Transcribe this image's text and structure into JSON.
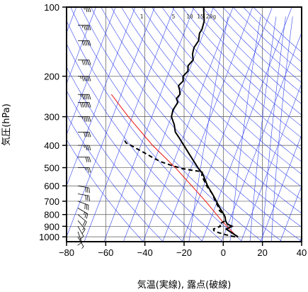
{
  "chart_data": {
    "type": "line",
    "chart_kind": "skew-T log-P thermodynamic diagram",
    "title": "",
    "xlabel": "気温(実線), 露点(破線)",
    "ylabel": "気圧(hPa)",
    "x_tick_labels": [
      "−80",
      "−60",
      "−40",
      "−20",
      "0",
      "20",
      "40"
    ],
    "x_ticks": [
      -80,
      -60,
      -40,
      -20,
      0,
      20,
      40
    ],
    "y_tick_labels": [
      "100",
      "200",
      "300",
      "400",
      "500",
      "600",
      "700",
      "800",
      "900",
      "1000"
    ],
    "y_ticks": [
      100,
      200,
      300,
      400,
      500,
      600,
      700,
      800,
      900,
      1000
    ],
    "y_scale": "log (pressure, inverted)",
    "xlim": [
      -80,
      40
    ],
    "ylim": [
      1050,
      100
    ],
    "grid": true,
    "mixing_ratio_labels": [
      "1",
      "5",
      "10",
      "15",
      "20g"
    ],
    "mixing_ratio_values": [
      1,
      5,
      10,
      15,
      20
    ],
    "colors": {
      "frame": "#000000",
      "grid": "#555555",
      "isotherm_and_adiabat_lines": "#3344ee",
      "reference_line": "#ee1111",
      "temperature": "#000000",
      "dewpoint": "#000000",
      "wind_barbs": "#000000"
    },
    "series": [
      {
        "style": "solid",
        "points": [
          {
            "p": 1000,
            "t": 7.5
          },
          {
            "p": 960,
            "t": 3.5
          },
          {
            "p": 925,
            "t": 0.0
          },
          {
            "p": 900,
            "t": 2.5
          },
          {
            "p": 880,
            "t": -0.5
          },
          {
            "p": 850,
            "t": -2.0
          },
          {
            "p": 820,
            "t": -3.0
          },
          {
            "p": 800,
            "t": -4.0
          },
          {
            "p": 770,
            "t": -6.0
          },
          {
            "p": 740,
            "t": -8.0
          },
          {
            "p": 700,
            "t": -10.5
          },
          {
            "p": 650,
            "t": -14.0
          },
          {
            "p": 600,
            "t": -18.0
          },
          {
            "p": 550,
            "t": -21.5
          },
          {
            "p": 530,
            "t": -23.0
          },
          {
            "p": 500,
            "t": -26.5
          },
          {
            "p": 450,
            "t": -32.0
          },
          {
            "p": 400,
            "t": -38.0
          },
          {
            "p": 370,
            "t": -42.0
          },
          {
            "p": 350,
            "t": -45.0
          },
          {
            "p": 325,
            "t": -47.0
          },
          {
            "p": 300,
            "t": -50.0
          },
          {
            "p": 280,
            "t": -50.5
          },
          {
            "p": 260,
            "t": -49.5
          },
          {
            "p": 250,
            "t": -51.0
          },
          {
            "p": 240,
            "t": -50.0
          },
          {
            "p": 230,
            "t": -51.0
          },
          {
            "p": 220,
            "t": -52.5
          },
          {
            "p": 210,
            "t": -51.0
          },
          {
            "p": 200,
            "t": -52.0
          },
          {
            "p": 190,
            "t": -50.5
          },
          {
            "p": 180,
            "t": -51.5
          },
          {
            "p": 170,
            "t": -50.0
          },
          {
            "p": 160,
            "t": -51.5
          },
          {
            "p": 150,
            "t": -52.0
          },
          {
            "p": 140,
            "t": -51.0
          },
          {
            "p": 130,
            "t": -52.0
          },
          {
            "p": 125,
            "t": -51.5
          },
          {
            "p": 115,
            "t": -52.0
          },
          {
            "p": 105,
            "t": -54.0
          },
          {
            "p": 100,
            "t": -55.0
          }
        ]
      },
      {
        "style": "dashed",
        "points": [
          {
            "p": 1000,
            "t": 6.0
          },
          {
            "p": 980,
            "t": 1.0
          },
          {
            "p": 960,
            "t": -3.0
          },
          {
            "p": 940,
            "t": -6.0
          },
          {
            "p": 925,
            "t": -6.5
          },
          {
            "p": 900,
            "t": -3.5
          },
          {
            "p": 880,
            "t": -4.5
          },
          {
            "p": 850,
            "t": -2.0
          },
          {
            "p": 820,
            "t": -3.0
          },
          {
            "p": 800,
            "t": -4.0
          },
          {
            "p": 770,
            "t": -7.0
          },
          {
            "p": 740,
            "t": -8.5
          },
          {
            "p": 700,
            "t": -11.0
          },
          {
            "p": 650,
            "t": -14.0
          },
          {
            "p": 600,
            "t": -18.5
          },
          {
            "p": 560,
            "t": -21.5
          },
          {
            "p": 540,
            "t": -23.0
          },
          {
            "p": 520,
            "t": -23.5
          },
          {
            "p": 515,
            "t": -28.0
          },
          {
            "p": 505,
            "t": -34.0
          },
          {
            "p": 490,
            "t": -40.0
          },
          {
            "p": 470,
            "t": -47.0
          },
          {
            "p": 450,
            "t": -52.0
          },
          {
            "p": 430,
            "t": -57.0
          },
          {
            "p": 415,
            "t": -61.0
          },
          {
            "p": 400,
            "t": -65.0
          },
          {
            "p": 390,
            "t": -68.0
          },
          {
            "p": 375,
            "t": -70.0
          }
        ]
      }
    ],
    "reference_line": {
      "style": "solid",
      "points": [
        {
          "p": 1000,
          "t": 7.0
        },
        {
          "p": 850,
          "t": -4.0
        },
        {
          "p": 700,
          "t": -16.0
        },
        {
          "p": 500,
          "t": -38.0
        },
        {
          "p": 400,
          "t": -54.0
        },
        {
          "p": 300,
          "t": -72.0
        },
        {
          "p": 240,
          "t": -85.0
        }
      ]
    },
    "wind_profile": [
      {
        "p": 100,
        "dir": 270,
        "kt": 35
      },
      {
        "p": 120,
        "dir": 270,
        "kt": 45
      },
      {
        "p": 140,
        "dir": 270,
        "kt": 50
      },
      {
        "p": 170,
        "dir": 270,
        "kt": 50
      },
      {
        "p": 200,
        "dir": 270,
        "kt": 55
      },
      {
        "p": 240,
        "dir": 270,
        "kt": 55
      },
      {
        "p": 260,
        "dir": 270,
        "kt": 60
      },
      {
        "p": 300,
        "dir": 270,
        "kt": 45
      },
      {
        "p": 350,
        "dir": 270,
        "kt": 40
      },
      {
        "p": 400,
        "dir": 270,
        "kt": 35
      },
      {
        "p": 450,
        "dir": 270,
        "kt": 30
      },
      {
        "p": 500,
        "dir": 270,
        "kt": 25
      },
      {
        "p": 600,
        "dir": 280,
        "kt": 30
      },
      {
        "p": 650,
        "dir": 280,
        "kt": 30
      },
      {
        "p": 700,
        "dir": 290,
        "kt": 30
      },
      {
        "p": 750,
        "dir": 300,
        "kt": 25
      },
      {
        "p": 800,
        "dir": 310,
        "kt": 20
      },
      {
        "p": 850,
        "dir": 320,
        "kt": 15
      },
      {
        "p": 900,
        "dir": 330,
        "kt": 10
      },
      {
        "p": 950,
        "dir": 340,
        "kt": 10
      },
      {
        "p": 1000,
        "dir": 330,
        "kt": 5
      }
    ]
  }
}
